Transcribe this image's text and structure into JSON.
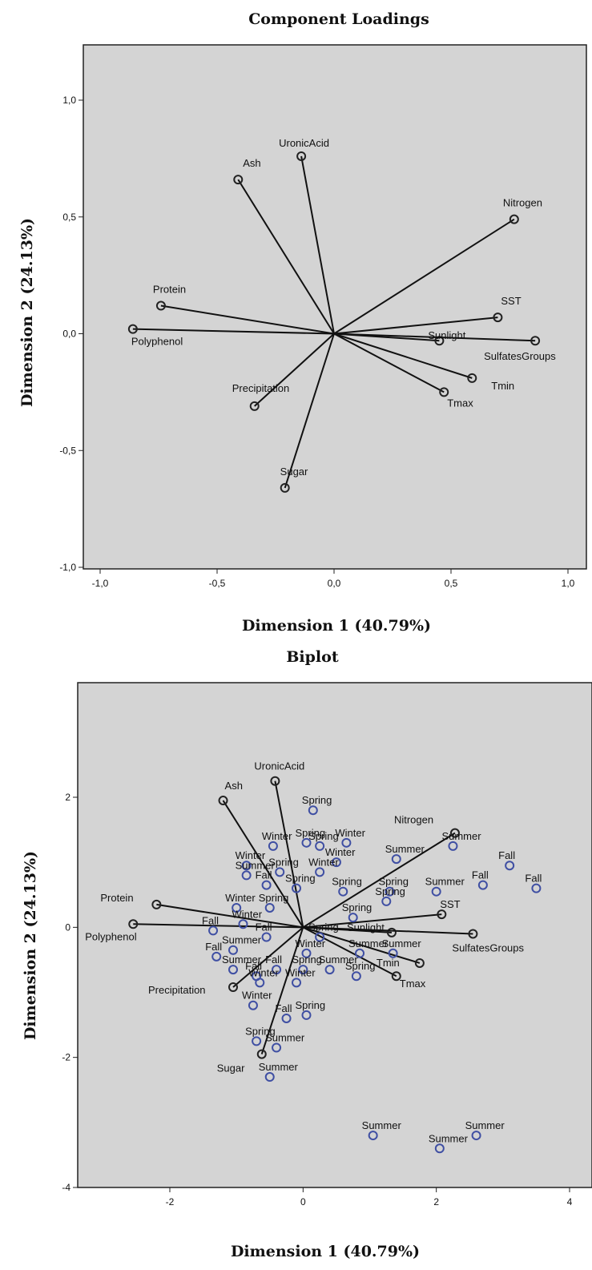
{
  "chart_data": [
    {
      "type": "scatter",
      "title": "Component Loadings",
      "xlabel": "Dimension 1 (40.79%)",
      "ylabel": "Dimension 2 (24.13%)",
      "xlim": [
        -1.1,
        1.05
      ],
      "ylim": [
        -1.0,
        1.2
      ],
      "xticks": [
        "-1,0",
        "-0,5",
        "0,0",
        "0,5",
        "1,0"
      ],
      "yticks": [
        "1,0",
        "0,5",
        "0,0",
        "-0,5",
        "-1,0"
      ],
      "background": "#d4d4d4",
      "vectors": [
        {
          "label": "UronicAcid",
          "x": -0.14,
          "y": 0.76
        },
        {
          "label": "Ash",
          "x": -0.41,
          "y": 0.66
        },
        {
          "label": "Nitrogen",
          "x": 0.77,
          "y": 0.49
        },
        {
          "label": "Protein",
          "x": -0.74,
          "y": 0.12
        },
        {
          "label": "Polyphenol",
          "x": -0.86,
          "y": 0.02
        },
        {
          "label": "SST",
          "x": 0.7,
          "y": 0.07
        },
        {
          "label": "Sunlight",
          "x": 0.45,
          "y": -0.03
        },
        {
          "label": "SulfatesGroups",
          "x": 0.86,
          "y": -0.03
        },
        {
          "label": "Tmin",
          "x": 0.59,
          "y": -0.19
        },
        {
          "label": "Tmax",
          "x": 0.47,
          "y": -0.25
        },
        {
          "label": "Precipitation",
          "x": -0.34,
          "y": -0.31
        },
        {
          "label": "Sugar",
          "x": -0.21,
          "y": -0.66
        }
      ]
    },
    {
      "type": "scatter",
      "title": "Biplot",
      "xlabel": "Dimension 1 (40.79%)",
      "ylabel": "Dimension 2 (24.13%)",
      "xlim": [
        -3.3,
        4.2
      ],
      "ylim": [
        -4,
        3.3
      ],
      "xticks": [
        "-2",
        "0",
        "2",
        "4"
      ],
      "yticks": [
        "2",
        "0",
        "-2",
        "-4"
      ],
      "background": "#d4d4d4",
      "point_color": "#3f4fa3",
      "vectors": [
        {
          "label": "UronicAcid",
          "x": -0.42,
          "y": 2.25
        },
        {
          "label": "Ash",
          "x": -1.2,
          "y": 1.95
        },
        {
          "label": "Nitrogen",
          "x": 2.28,
          "y": 1.45
        },
        {
          "label": "Protein",
          "x": -2.2,
          "y": 0.35
        },
        {
          "label": "Polyphenol",
          "x": -2.55,
          "y": 0.05
        },
        {
          "label": "SST",
          "x": 2.08,
          "y": 0.2
        },
        {
          "label": "Sunlight",
          "x": 1.33,
          "y": -0.08
        },
        {
          "label": "SulfatesGroups",
          "x": 2.55,
          "y": -0.1
        },
        {
          "label": "Tmin",
          "x": 1.75,
          "y": -0.55
        },
        {
          "label": "Tmax",
          "x": 1.4,
          "y": -0.75
        },
        {
          "label": "Precipitation",
          "x": -1.05,
          "y": -0.92
        },
        {
          "label": "Sugar",
          "x": -0.62,
          "y": -1.95
        }
      ],
      "observations": [
        {
          "label": "Spring",
          "x": 0.15,
          "y": 1.8
        },
        {
          "label": "Spring",
          "x": 0.05,
          "y": 1.3
        },
        {
          "label": "Spring",
          "x": 0.25,
          "y": 1.25
        },
        {
          "label": "Winter",
          "x": -0.45,
          "y": 1.25
        },
        {
          "label": "Winter",
          "x": 0.65,
          "y": 1.3
        },
        {
          "label": "Winter",
          "x": 0.5,
          "y": 1.0
        },
        {
          "label": "Winter",
          "x": -0.85,
          "y": 0.95
        },
        {
          "label": "Spring",
          "x": -0.35,
          "y": 0.85
        },
        {
          "label": "Winter",
          "x": 0.25,
          "y": 0.85
        },
        {
          "label": "Summer",
          "x": 1.4,
          "y": 1.05
        },
        {
          "label": "Summer",
          "x": -0.85,
          "y": 0.8
        },
        {
          "label": "Fall",
          "x": -0.55,
          "y": 0.65
        },
        {
          "label": "Spring",
          "x": 0.6,
          "y": 0.55
        },
        {
          "label": "Spring",
          "x": 1.3,
          "y": 0.55
        },
        {
          "label": "Spring",
          "x": 1.25,
          "y": 0.4
        },
        {
          "label": "Spring",
          "x": -0.1,
          "y": 0.6
        },
        {
          "label": "Summer",
          "x": 2.0,
          "y": 0.55
        },
        {
          "label": "Winter",
          "x": -1.0,
          "y": 0.3
        },
        {
          "label": "Spring",
          "x": -0.5,
          "y": 0.3
        },
        {
          "label": "Spring",
          "x": 0.75,
          "y": 0.15
        },
        {
          "label": "Winter",
          "x": -0.9,
          "y": 0.05
        },
        {
          "label": "Fall",
          "x": -1.35,
          "y": -0.05
        },
        {
          "label": "Fall",
          "x": -0.55,
          "y": -0.15
        },
        {
          "label": "Summer",
          "x": -1.05,
          "y": -0.35
        },
        {
          "label": "Fall",
          "x": -1.3,
          "y": -0.45
        },
        {
          "label": "Summer",
          "x": -1.05,
          "y": -0.65
        },
        {
          "label": "Fall",
          "x": -0.7,
          "y": -0.75
        },
        {
          "label": "Fall",
          "x": -0.4,
          "y": -0.65
        },
        {
          "label": "Spring",
          "x": 0.25,
          "y": -0.15
        },
        {
          "label": "Winter",
          "x": 0.05,
          "y": -0.4
        },
        {
          "label": "Summer",
          "x": 0.85,
          "y": -0.4
        },
        {
          "label": "Summer",
          "x": 1.35,
          "y": -0.4
        },
        {
          "label": "Spring",
          "x": 0.0,
          "y": -0.65
        },
        {
          "label": "Summer",
          "x": 0.4,
          "y": -0.65
        },
        {
          "label": "Spring",
          "x": 0.8,
          "y": -0.75
        },
        {
          "label": "Winter",
          "x": -0.65,
          "y": -0.85
        },
        {
          "label": "Winter",
          "x": -0.1,
          "y": -0.85
        },
        {
          "label": "Winter",
          "x": -0.75,
          "y": -1.2
        },
        {
          "label": "Fall",
          "x": -0.25,
          "y": -1.4
        },
        {
          "label": "Spring",
          "x": 0.05,
          "y": -1.35
        },
        {
          "label": "Spring",
          "x": -0.7,
          "y": -1.75
        },
        {
          "label": "Summer",
          "x": -0.4,
          "y": -1.85
        },
        {
          "label": "Summer",
          "x": 2.25,
          "y": 1.25
        },
        {
          "label": "Summer",
          "x": -0.5,
          "y": -2.3
        },
        {
          "label": "Fall",
          "x": 3.1,
          "y": 0.95
        },
        {
          "label": "Fall",
          "x": 2.7,
          "y": 0.65
        },
        {
          "label": "Fall",
          "x": 3.5,
          "y": 0.6
        },
        {
          "label": "Summer",
          "x": 1.05,
          "y": -3.2
        },
        {
          "label": "Summer",
          "x": 2.6,
          "y": -3.2
        },
        {
          "label": "Summer",
          "x": 2.05,
          "y": -3.4
        }
      ]
    }
  ]
}
